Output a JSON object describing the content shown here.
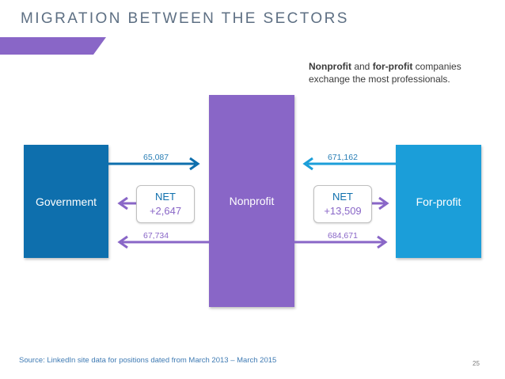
{
  "title": "MIGRATION BETWEEN THE SECTORS",
  "note": {
    "bold1": "Nonprofit",
    "text1": " and ",
    "bold2": "for-profit",
    "text2": " companies exchange the most professionals."
  },
  "sectors": {
    "government": "Government",
    "nonprofit": "Nonprofit",
    "forprofit": "For-profit"
  },
  "flows": {
    "gov_to_non": "65,087",
    "non_to_gov": "67,734",
    "for_to_non": "671,162",
    "non_to_for": "684,671"
  },
  "net_left": {
    "label": "NET",
    "value": "+2,647"
  },
  "net_right": {
    "label": "NET",
    "value": "+13,509"
  },
  "source": "Source: LinkedIn site data for positions dated from March 2013 – March 2015",
  "page_number": "25",
  "colors": {
    "government": "#0e6fad",
    "nonprofit": "#8966c7",
    "forprofit": "#1b9ed9",
    "accent": "#8966c7"
  }
}
